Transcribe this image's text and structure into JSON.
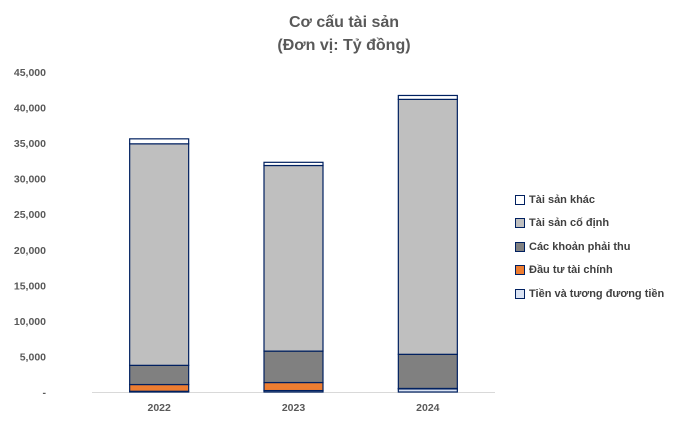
{
  "chart_data": {
    "type": "bar",
    "stacked": true,
    "title": "Cơ cấu tài sản",
    "subtitle": "(Đơn vị: Tỷ đồng)",
    "xlabel": "",
    "ylabel": "",
    "categories": [
      "2022",
      "2023",
      "2024"
    ],
    "ylim": [
      0,
      45000
    ],
    "yticks": [
      "-",
      "5,000",
      "10,000",
      "15,000",
      "20,000",
      "25,000",
      "30,000",
      "35,000",
      "40,000",
      "45,000"
    ],
    "legend_position": "right",
    "series": [
      {
        "name": "Tiền và tương đương tiền",
        "color": "#dae3f3",
        "values": [
          100,
          200,
          450
        ]
      },
      {
        "name": "Đầu tư tài chính",
        "color": "#ed7d31",
        "values": [
          950,
          1130,
          50
        ]
      },
      {
        "name": "Các khoản phải thu",
        "color": "#808080",
        "values": [
          2700,
          4420,
          4800
        ]
      },
      {
        "name": "Tài sản cố định",
        "color": "#bfbfbf",
        "values": [
          31150,
          26100,
          35850
        ]
      },
      {
        "name": "Tài sản khác",
        "color": "#ffffff",
        "values": [
          700,
          450,
          550
        ]
      }
    ]
  }
}
